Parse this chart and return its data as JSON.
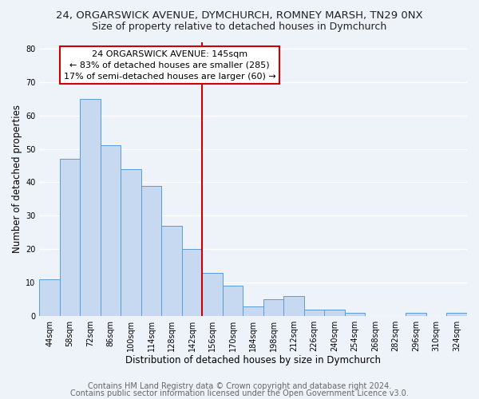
{
  "title_line1": "24, ORGARSWICK AVENUE, DYMCHURCH, ROMNEY MARSH, TN29 0NX",
  "title_line2": "Size of property relative to detached houses in Dymchurch",
  "xlabel": "Distribution of detached houses by size in Dymchurch",
  "ylabel": "Number of detached properties",
  "bar_labels": [
    "44sqm",
    "58sqm",
    "72sqm",
    "86sqm",
    "100sqm",
    "114sqm",
    "128sqm",
    "142sqm",
    "156sqm",
    "170sqm",
    "184sqm",
    "198sqm",
    "212sqm",
    "226sqm",
    "240sqm",
    "254sqm",
    "268sqm",
    "282sqm",
    "296sqm",
    "310sqm",
    "324sqm"
  ],
  "bar_values": [
    11,
    47,
    65,
    51,
    44,
    39,
    27,
    20,
    13,
    9,
    3,
    5,
    6,
    2,
    2,
    1,
    0,
    0,
    1,
    0,
    1
  ],
  "bar_color": "#c6d9f0",
  "bar_edge_color": "#5b9bd5",
  "vline_index": 7,
  "vline_color": "#cc0000",
  "annotation_title": "24 ORGARSWICK AVENUE: 145sqm",
  "annotation_line1": "← 83% of detached houses are smaller (285)",
  "annotation_line2": "17% of semi-detached houses are larger (60) →",
  "ylim": [
    0,
    82
  ],
  "yticks": [
    0,
    10,
    20,
    30,
    40,
    50,
    60,
    70,
    80
  ],
  "footer1": "Contains HM Land Registry data © Crown copyright and database right 2024.",
  "footer2": "Contains public sector information licensed under the Open Government Licence v3.0.",
  "background_color": "#eef2f9",
  "grid_color": "#ffffff",
  "title_fontsize": 9.5,
  "subtitle_fontsize": 9,
  "label_fontsize": 8.5,
  "tick_fontsize": 7,
  "annotation_fontsize": 8,
  "footer_fontsize": 7
}
